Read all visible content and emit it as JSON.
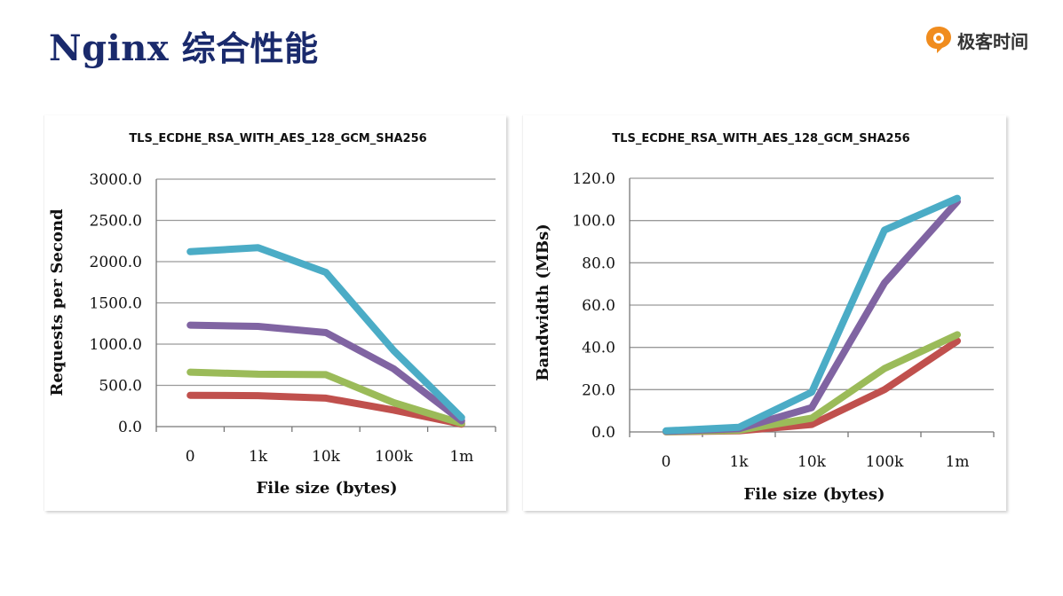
{
  "page": {
    "title_latin": "Nginx",
    "title_cjk": "综合性能",
    "logo_text": "极客时间",
    "logo_icon": "geektime-logo-icon"
  },
  "chart_data": [
    {
      "type": "line",
      "title": "TLS_ECDHE_RSA_WITH_AES_128_GCM_SHA256",
      "xlabel": "File size (bytes)",
      "ylabel": "Requests per Second",
      "categories": [
        "0",
        "1k",
        "10k",
        "100k",
        "1m"
      ],
      "ylim": [
        0,
        3000
      ],
      "yticks": [
        "0.0",
        "500.0",
        "1000.0",
        "1500.0",
        "2000.0",
        "2500.0",
        "3000.0"
      ],
      "ytick_values": [
        0,
        500,
        1000,
        1500,
        2000,
        2500,
        3000
      ],
      "grid": true,
      "series": [
        {
          "color": "#4bacc6",
          "values": [
            2120,
            2170,
            1870,
            920,
            110
          ]
        },
        {
          "color": "#8064a2",
          "values": [
            1230,
            1215,
            1140,
            700,
            70
          ]
        },
        {
          "color": "#9bbb59",
          "values": [
            660,
            635,
            630,
            290,
            40
          ]
        },
        {
          "color": "#c0504d",
          "values": [
            380,
            375,
            345,
            200,
            30
          ]
        }
      ]
    },
    {
      "type": "line",
      "title": "TLS_ECDHE_RSA_WITH_AES_128_GCM_SHA256",
      "xlabel": "File size (bytes)",
      "ylabel": "Bandwidth (MBs)",
      "categories": [
        "0",
        "1k",
        "10k",
        "100k",
        "1m"
      ],
      "ylim": [
        0,
        120
      ],
      "yticks": [
        "0.0",
        "20.0",
        "40.0",
        "60.0",
        "80.0",
        "100.0",
        "120.0"
      ],
      "ytick_values": [
        0,
        20,
        40,
        60,
        80,
        100,
        120
      ],
      "grid": true,
      "series": [
        {
          "color": "#4bacc6",
          "values": [
            0.5,
            2.2,
            18.8,
            95.5,
            110.5
          ]
        },
        {
          "color": "#8064a2",
          "values": [
            0.3,
            1.5,
            11.5,
            70.5,
            109
          ]
        },
        {
          "color": "#9bbb59",
          "values": [
            0.1,
            0.8,
            6.5,
            30,
            46
          ]
        },
        {
          "color": "#c0504d",
          "values": [
            0.05,
            0.5,
            3.5,
            20,
            43
          ]
        }
      ]
    }
  ]
}
